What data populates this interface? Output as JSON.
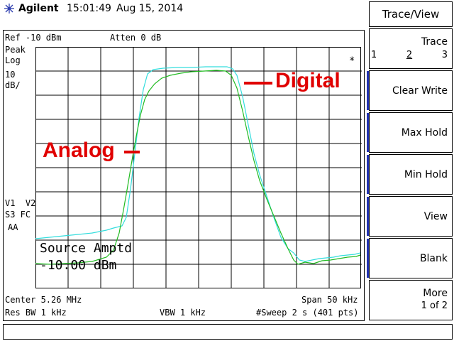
{
  "header": {
    "brand": "Agilent",
    "time": "15:01:49",
    "date": "Aug 15, 2014"
  },
  "readouts": {
    "ref": "Ref -10 dBm",
    "atten": "Atten 0 dB",
    "detector": "Peak",
    "scale_type": "Log",
    "scale_value": "10",
    "scale_unit": "dB/",
    "status_1": "V1  V2",
    "status_2": "S3 FC",
    "status_3": "AA",
    "center": "Center 5.26 MHz",
    "span": "Span 50 kHz",
    "res_bw": "Res BW 1 kHz",
    "vbw": "VBW 1 kHz",
    "sweep": "#Sweep 2 s (401 pts)",
    "marker": "*"
  },
  "source": {
    "title": "Source Amptd",
    "value": "-10.00 dBm"
  },
  "annotations": {
    "digital": "Digital",
    "analog": "Analog"
  },
  "trace_colors": {
    "analog": "#22bb22",
    "digital": "#33dddd"
  },
  "softkeys": {
    "title": "Trace/View",
    "trace": {
      "label": "Trace",
      "options": [
        "1",
        "2",
        "3"
      ],
      "selected": "2"
    },
    "clear_write": "Clear Write",
    "max_hold": "Max Hold",
    "min_hold": "Min Hold",
    "view": "View",
    "blank": "Blank",
    "more": {
      "label": "More",
      "sub": "1 of 2"
    }
  }
}
